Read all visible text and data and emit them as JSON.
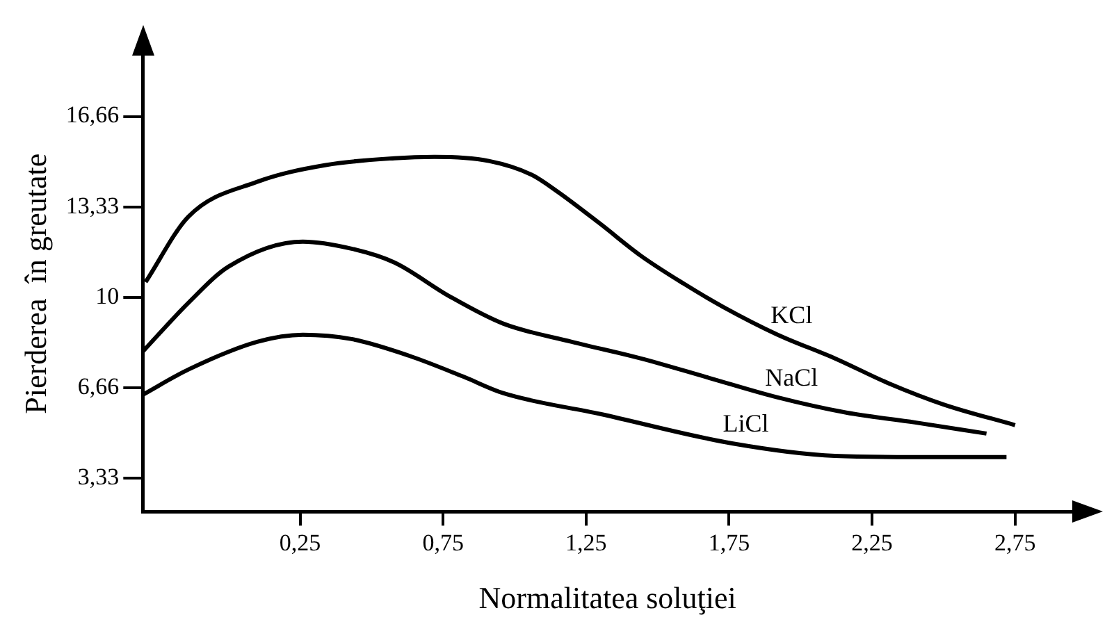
{
  "chart_data": {
    "type": "line",
    "xlabel": "Normalitatea soluţiei",
    "ylabel": "Pierderea  în greutate",
    "xlim": [
      -0.3,
      2.95
    ],
    "ylim": [
      2.1,
      18.9
    ],
    "xticks": [
      {
        "value": 0.25,
        "label": "0,25"
      },
      {
        "value": 0.75,
        "label": "0,75"
      },
      {
        "value": 1.25,
        "label": "1,25"
      },
      {
        "value": 1.75,
        "label": "1,75"
      },
      {
        "value": 2.25,
        "label": "2,25"
      },
      {
        "value": 2.75,
        "label": "2,75"
      }
    ],
    "yticks": [
      {
        "value": 3.33,
        "label": "3,33"
      },
      {
        "value": 6.66,
        "label": "6,66"
      },
      {
        "value": 10,
        "label": "10"
      },
      {
        "value": 13.33,
        "label": "13,33"
      },
      {
        "value": 16.66,
        "label": "16,66"
      }
    ],
    "grid": false,
    "legend": false,
    "marker": "none",
    "line_style": "solid",
    "series": [
      {
        "name": "KCl",
        "color": "#000000",
        "x": [
          -0.29,
          -0.14,
          0.1,
          0.34,
          0.58,
          0.72,
          0.91,
          1.06,
          1.15,
          1.3,
          1.44,
          1.59,
          1.73,
          1.92,
          2.12,
          2.31,
          2.5,
          2.75
        ],
        "values": [
          10.56,
          12.97,
          14.25,
          14.87,
          15.12,
          15.17,
          15.02,
          14.51,
          13.89,
          12.7,
          11.54,
          10.51,
          9.64,
          8.62,
          7.75,
          6.82,
          6.05,
          5.29
        ]
      },
      {
        "name": "NaCl",
        "color": "#000000",
        "x": [
          -0.3,
          -0.14,
          0.0,
          0.26,
          0.43,
          0.58,
          0.77,
          0.96,
          1.2,
          1.44,
          1.68,
          1.92,
          2.16,
          2.4,
          2.65
        ],
        "values": [
          8.0,
          9.8,
          11.13,
          12.05,
          11.79,
          11.28,
          10.05,
          9.03,
          8.36,
          7.75,
          7.03,
          6.31,
          5.75,
          5.39,
          4.98
        ]
      },
      {
        "name": "LiCl",
        "color": "#000000",
        "x": [
          -0.3,
          -0.14,
          0.1,
          0.26,
          0.43,
          0.63,
          0.82,
          0.96,
          1.3,
          1.76,
          2.12,
          2.5,
          2.72
        ],
        "values": [
          6.41,
          7.34,
          8.36,
          8.62,
          8.46,
          7.85,
          7.08,
          6.47,
          5.7,
          4.62,
          4.16,
          4.11,
          4.11
        ]
      }
    ]
  }
}
